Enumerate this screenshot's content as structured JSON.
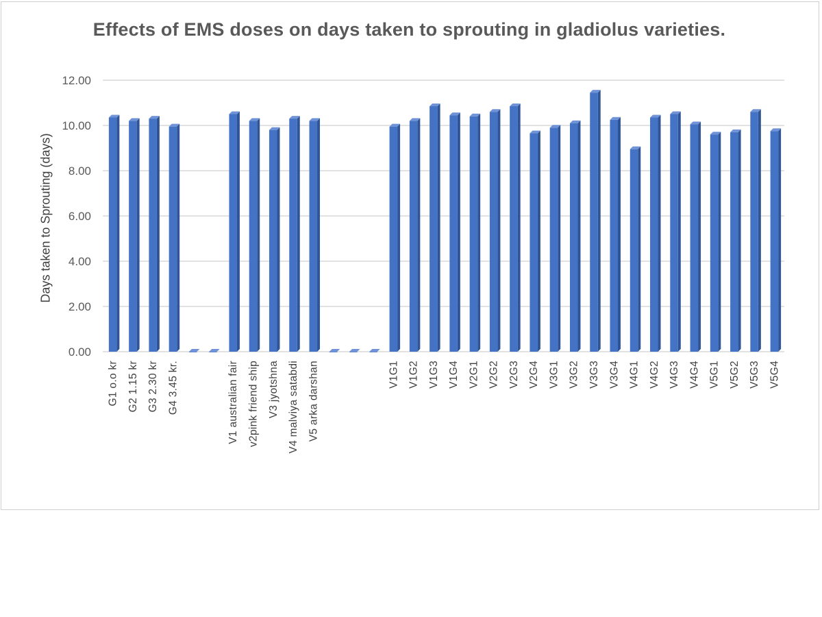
{
  "chart_data": {
    "type": "bar",
    "title": "Effects of EMS doses on days taken to sprouting in gladiolus varieties.",
    "xlabel": "",
    "ylabel": "Days taken  to Sprouting (days)",
    "ylim": [
      0,
      12
    ],
    "yticks": [
      "0.00",
      "2.00",
      "4.00",
      "6.00",
      "8.00",
      "10.00",
      "12.00"
    ],
    "grid": true,
    "legend": "none",
    "bar_color": "#4472c4",
    "categories": [
      "G1 o.o kr",
      "G2 1.15 kr",
      "G3 2.30 kr",
      "G4 3.45 kr.",
      "",
      "",
      "V1 australian fair",
      "v2pink friend ship",
      "V3 jyotshna",
      "V4 malviya satabdi",
      "V5 arka darshan",
      "",
      "",
      "",
      "V1G1",
      "V1G2",
      "V1G3",
      "V1G4",
      "V2G1",
      "V2G2",
      "V2G3",
      "V2G4",
      "V3G1",
      "V3G2",
      "V3G3",
      "V3G4",
      "V4G1",
      "V4G2",
      "V4G3",
      "V4G4",
      "V5G1",
      "V5G2",
      "V5G3",
      "V5G4"
    ],
    "values": [
      10.35,
      10.2,
      10.3,
      9.95,
      0,
      0,
      10.5,
      10.2,
      9.8,
      10.3,
      10.2,
      0,
      0,
      0,
      9.95,
      10.2,
      10.85,
      10.45,
      10.4,
      10.6,
      10.85,
      9.65,
      9.9,
      10.1,
      11.45,
      10.25,
      8.95,
      10.35,
      10.5,
      10.05,
      9.6,
      9.7,
      10.6,
      9.75
    ]
  }
}
